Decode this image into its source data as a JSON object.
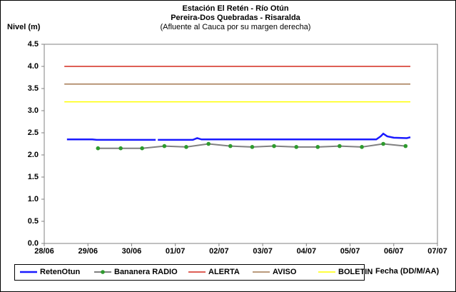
{
  "chart_data": {
    "type": "line",
    "title": "Estación El Retén - Río Otún",
    "subtitle": "Pereira-Dos Quebradas - Risaralda",
    "annotation": "(Afluente al Cauca por su margen derecha)",
    "y_label": "Nivel (m)",
    "x_label": "Fecha (DD/M/AA)",
    "xlim": [
      0,
      9
    ],
    "xticks": [
      {
        "value": 0,
        "label": "28/06"
      },
      {
        "value": 1,
        "label": "29/06"
      },
      {
        "value": 2,
        "label": "30/06"
      },
      {
        "value": 3,
        "label": "01/07"
      },
      {
        "value": 4,
        "label": "02/07"
      },
      {
        "value": 5,
        "label": "03/07"
      },
      {
        "value": 6,
        "label": "04/07"
      },
      {
        "value": 7,
        "label": "05/07"
      },
      {
        "value": 8,
        "label": "06/07"
      },
      {
        "value": 9,
        "label": "07/07"
      }
    ],
    "ylim": [
      0,
      4.5
    ],
    "yticks": [
      {
        "value": 0,
        "label": "0.0"
      },
      {
        "value": 0.5,
        "label": "0.5"
      },
      {
        "value": 1,
        "label": "1.0"
      },
      {
        "value": 1.5,
        "label": "1.5"
      },
      {
        "value": 2,
        "label": "2.0"
      },
      {
        "value": 2.5,
        "label": "2.5"
      },
      {
        "value": 3,
        "label": "3.0"
      },
      {
        "value": 3.5,
        "label": "3.5"
      },
      {
        "value": 4,
        "label": "4.0"
      },
      {
        "value": 4.5,
        "label": "4.5"
      }
    ],
    "grid": false,
    "legend": "bottom",
    "series": [
      {
        "name": "RetenOtun",
        "color": "#1a1aff",
        "width": 2.5,
        "markers": false,
        "x": [
          0.52,
          1.1,
          1.2,
          2.55,
          null,
          2.6,
          3.4,
          3.5,
          3.6,
          7.6,
          7.7,
          7.76,
          7.85,
          8.0,
          8.3,
          8.38
        ],
        "values": [
          2.35,
          2.35,
          2.34,
          2.34,
          null,
          2.34,
          2.34,
          2.38,
          2.35,
          2.35,
          2.42,
          2.48,
          2.42,
          2.39,
          2.38,
          2.4
        ]
      },
      {
        "name": "Bananera RADIO",
        "color": "#808080",
        "marker_color": "#2e9a2e",
        "width": 2,
        "markers": true,
        "x": [
          1.23,
          1.75,
          2.24,
          2.75,
          3.25,
          3.76,
          4.26,
          4.76,
          5.26,
          5.77,
          6.26,
          6.76,
          7.27,
          7.76,
          8.27
        ],
        "values": [
          2.15,
          2.15,
          2.15,
          2.2,
          2.18,
          2.25,
          2.2,
          2.18,
          2.2,
          2.18,
          2.18,
          2.2,
          2.18,
          2.25,
          2.2
        ]
      },
      {
        "name": "ALERTA",
        "color": "#d42a1e",
        "width": 1.5,
        "markers": false,
        "x": [
          0.46,
          8.38
        ],
        "values": [
          4,
          4
        ]
      },
      {
        "name": "AVISO",
        "color": "#a47850",
        "width": 1.5,
        "markers": false,
        "x": [
          0.46,
          8.38
        ],
        "values": [
          3.6,
          3.6
        ]
      },
      {
        "name": "BOLETIN",
        "color": "#ffff00",
        "width": 1.5,
        "markers": false,
        "x": [
          0.46,
          8.38
        ],
        "values": [
          3.2,
          3.2
        ]
      }
    ]
  }
}
